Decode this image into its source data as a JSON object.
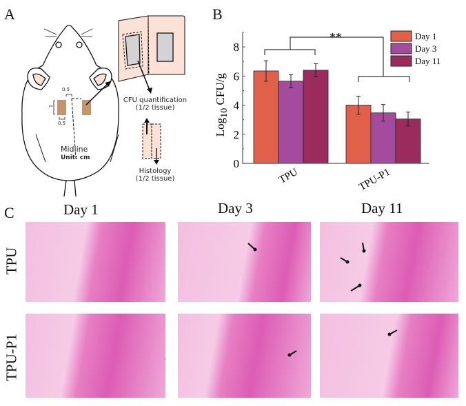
{
  "panels": {
    "a": "A",
    "b": "B",
    "c": "C"
  },
  "schematic": {
    "dim_top": "0.5",
    "dim_side": "1",
    "dim_bottom": "0.5",
    "midline": "Midline",
    "unit": "Unit: cm",
    "cfu_line1": "CFU quantification",
    "cfu_line2": "(1/2 tissue)",
    "histo_line1": "Histology",
    "histo_line2": "(1/2 tissue)",
    "implant_color": "#c4956a",
    "skin_color": "#fbe1d6"
  },
  "chart_data": {
    "type": "bar",
    "categories": [
      "TPU",
      "TPU-P1"
    ],
    "series": [
      {
        "name": "Day 1",
        "values": [
          6.35,
          4.0
        ],
        "errors": [
          0.7,
          0.62
        ],
        "color": "#e0604a"
      },
      {
        "name": "Day 3",
        "values": [
          5.65,
          3.47
        ],
        "errors": [
          0.45,
          0.57
        ],
        "color": "#a54b9e"
      },
      {
        "name": "Day 11",
        "values": [
          6.4,
          3.05
        ],
        "errors": [
          0.45,
          0.48
        ],
        "color": "#9b2b5c"
      }
    ],
    "ylabel_main": "Log",
    "ylabel_sub": "10",
    "ylabel_rest": " CFU/g",
    "yticks": [
      "0",
      "2",
      "4",
      "6",
      "8"
    ],
    "ylim": [
      0,
      9
    ],
    "significance": "**",
    "legend": "top-right",
    "grid": false
  },
  "histology": {
    "columns": [
      "Day 1",
      "Day 3",
      "Day 11"
    ],
    "rows": [
      "TPU",
      "TPU-P1"
    ]
  }
}
